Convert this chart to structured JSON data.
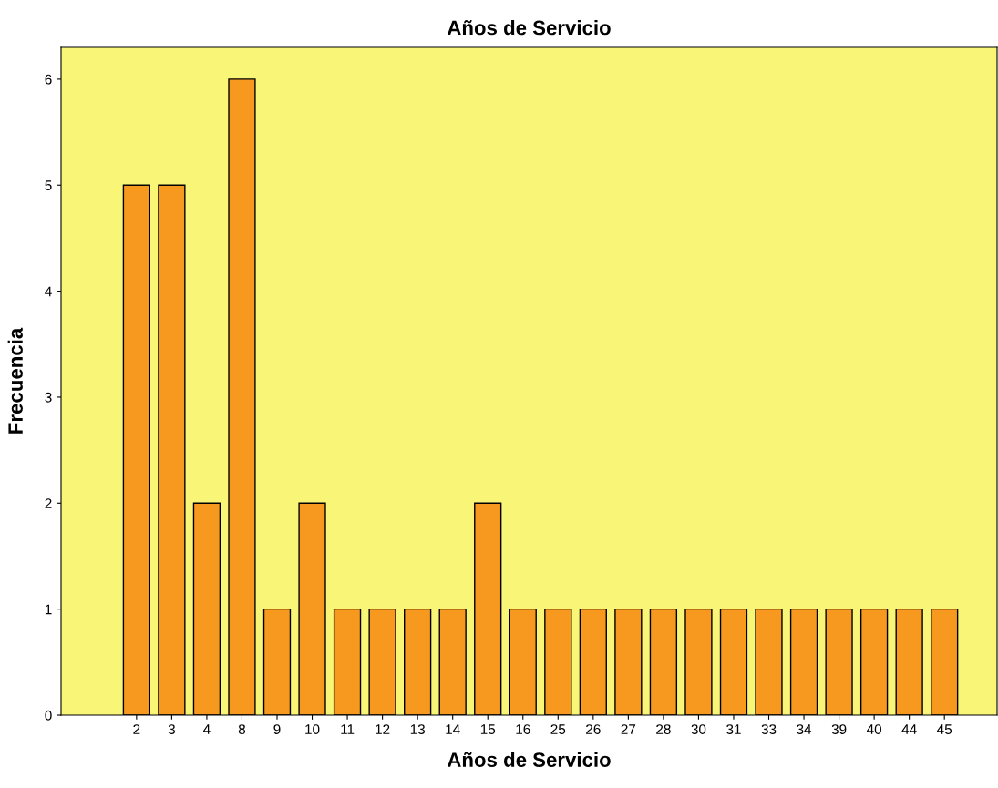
{
  "chart_data": {
    "type": "bar",
    "title": "Años de Servicio",
    "xlabel": "Años de Servicio",
    "ylabel": "Frecuencia",
    "categories": [
      "2",
      "3",
      "4",
      "8",
      "9",
      "10",
      "11",
      "12",
      "13",
      "14",
      "15",
      "16",
      "25",
      "26",
      "27",
      "28",
      "30",
      "31",
      "33",
      "34",
      "39",
      "40",
      "44",
      "45"
    ],
    "values": [
      5,
      5,
      2,
      6,
      1,
      2,
      1,
      1,
      1,
      1,
      2,
      1,
      1,
      1,
      1,
      1,
      1,
      1,
      1,
      1,
      1,
      1,
      1,
      1
    ],
    "color": "#f7981f",
    "ylim": [
      0,
      6.3
    ],
    "yticks": [
      0,
      1,
      2,
      3,
      4,
      5,
      6
    ],
    "grid": false,
    "legend": false
  }
}
